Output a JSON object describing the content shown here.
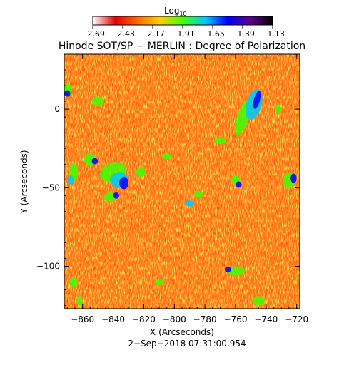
{
  "chart_data": {
    "type": "heatmap",
    "title": "Hinode SOT/SP − MERLIN : Degree of Polarization",
    "xlabel": "X (Arcseconds)",
    "ylabel": "Y (Arcseconds)",
    "xlim": [
      -872,
      -718
    ],
    "ylim": [
      -127,
      35
    ],
    "xticks": [
      -860,
      -840,
      -820,
      -800,
      -780,
      -760,
      -740,
      -720
    ],
    "xtick_labels": [
      "−860",
      "−840",
      "−820",
      "−800",
      "−780",
      "−760",
      "−740",
      "−720"
    ],
    "yticks": [
      0,
      -50,
      -100
    ],
    "ytick_labels": [
      "0",
      "−50",
      "−100"
    ],
    "colorbar": {
      "label": "Log",
      "label_subscript": "10",
      "min": -2.69,
      "max": -1.13,
      "ticks": [
        -2.69,
        -2.43,
        -2.17,
        -1.91,
        -1.65,
        -1.39,
        -1.13
      ],
      "tick_labels": [
        "−2.69",
        "−2.43",
        "−2.17",
        "−1.91",
        "−1.65",
        "−1.39",
        "−1.13"
      ],
      "colormap": [
        "#ffffff",
        "#e60000",
        "#ff6a00",
        "#ffd000",
        "#40ff00",
        "#00c8ff",
        "#0000ff",
        "#600090",
        "#000000"
      ]
    },
    "background_color": "#ff7a1a",
    "grid": false,
    "footer": "2−Sep−2018 07:31:00.954"
  }
}
